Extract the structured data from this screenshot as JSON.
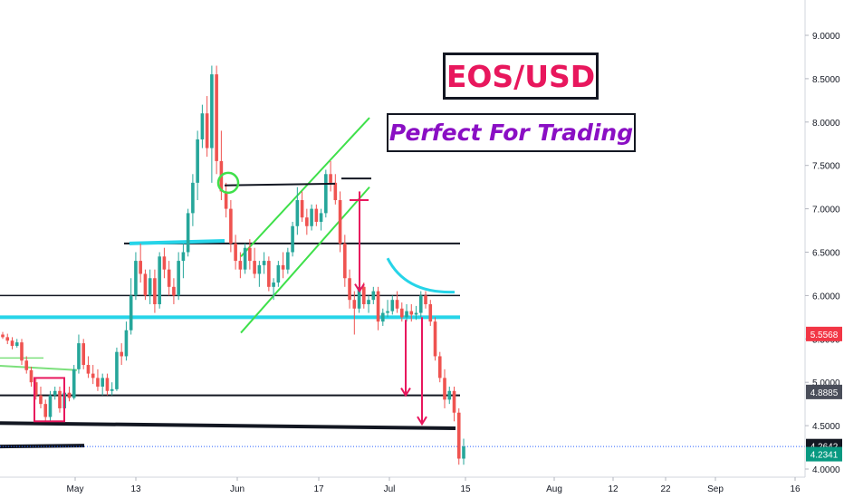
{
  "chart_data": {
    "type": "candlestick",
    "title": "EOS/USD",
    "subtitle": "Perfect For Trading",
    "y_ticks": [
      "9.0000",
      "8.5000",
      "8.0000",
      "7.5000",
      "7.0000",
      "6.5000",
      "6.0000",
      "5.5000",
      "5.0000",
      "4.5000",
      "4.0000"
    ],
    "ylim": [
      3.95,
      9.35
    ],
    "x_ticks": [
      "May",
      "13",
      "Jun",
      "17",
      "Jul",
      "15",
      "Aug",
      "12",
      "22",
      "Sep",
      "16"
    ],
    "price_labels": [
      {
        "value": "5.5568",
        "color": "#f23645"
      },
      {
        "value": "4.8885",
        "color": "#4a4e5a"
      },
      {
        "value": "4.2642",
        "color": "#131722"
      },
      {
        "value": "4.2341",
        "color": "#089981"
      }
    ],
    "colors": {
      "up": "#26a69a",
      "down": "#ef5350",
      "cyan": "#26d4e8",
      "green": "#3ee04a",
      "red": "#e8175d"
    },
    "candles": [
      [
        5.55,
        5.58,
        5.5,
        5.52
      ],
      [
        5.52,
        5.56,
        5.44,
        5.48
      ],
      [
        5.48,
        5.52,
        5.38,
        5.42
      ],
      [
        5.42,
        5.5,
        5.4,
        5.46
      ],
      [
        5.46,
        5.5,
        5.2,
        5.25
      ],
      [
        5.25,
        5.3,
        5.1,
        5.14
      ],
      [
        5.14,
        5.18,
        4.95,
        5.0
      ],
      [
        5.0,
        5.05,
        4.8,
        4.85
      ],
      [
        4.85,
        4.95,
        4.7,
        4.75
      ],
      [
        4.75,
        4.8,
        4.55,
        4.6
      ],
      [
        4.6,
        4.9,
        4.55,
        4.85
      ],
      [
        4.85,
        4.95,
        4.8,
        4.9
      ],
      [
        4.9,
        4.95,
        4.65,
        4.7
      ],
      [
        4.7,
        4.92,
        4.65,
        4.88
      ],
      [
        4.88,
        4.95,
        4.78,
        4.82
      ],
      [
        4.82,
        5.2,
        4.8,
        5.15
      ],
      [
        5.15,
        5.55,
        5.1,
        5.45
      ],
      [
        5.45,
        5.5,
        5.15,
        5.2
      ],
      [
        5.2,
        5.3,
        5.05,
        5.1
      ],
      [
        5.1,
        5.2,
        4.98,
        5.05
      ],
      [
        5.05,
        5.15,
        4.9,
        4.95
      ],
      [
        4.95,
        5.1,
        4.85,
        5.05
      ],
      [
        5.05,
        5.1,
        4.85,
        4.9
      ],
      [
        4.9,
        5.0,
        4.85,
        4.92
      ],
      [
        4.92,
        5.4,
        4.9,
        5.35
      ],
      [
        5.35,
        5.45,
        5.2,
        5.3
      ],
      [
        5.3,
        5.7,
        5.25,
        5.6
      ],
      [
        5.6,
        6.2,
        5.55,
        6.0
      ],
      [
        6.0,
        6.5,
        5.95,
        6.4
      ],
      [
        6.4,
        6.6,
        6.15,
        6.25
      ],
      [
        6.25,
        6.3,
        5.95,
        6.0
      ],
      [
        6.0,
        6.3,
        5.9,
        6.2
      ],
      [
        6.2,
        6.3,
        5.8,
        5.9
      ],
      [
        5.9,
        6.5,
        5.85,
        6.45
      ],
      [
        6.45,
        6.55,
        6.2,
        6.3
      ],
      [
        6.3,
        6.4,
        6.0,
        6.1
      ],
      [
        6.1,
        6.2,
        5.9,
        6.0
      ],
      [
        6.0,
        6.5,
        5.95,
        6.4
      ],
      [
        6.4,
        6.6,
        6.2,
        6.5
      ],
      [
        6.5,
        7.0,
        6.45,
        6.95
      ],
      [
        6.95,
        7.4,
        6.8,
        7.3
      ],
      [
        7.3,
        7.9,
        7.1,
        7.8
      ],
      [
        7.8,
        8.2,
        7.7,
        8.1
      ],
      [
        8.1,
        8.3,
        7.6,
        7.7
      ],
      [
        7.7,
        8.65,
        7.3,
        8.55
      ],
      [
        8.55,
        8.65,
        7.4,
        7.55
      ],
      [
        7.55,
        7.9,
        7.1,
        7.2
      ],
      [
        7.2,
        7.3,
        6.9,
        7.0
      ],
      [
        7.0,
        7.1,
        6.5,
        6.6
      ],
      [
        6.6,
        6.7,
        6.3,
        6.4
      ],
      [
        6.4,
        6.5,
        6.2,
        6.3
      ],
      [
        6.3,
        6.6,
        6.25,
        6.55
      ],
      [
        6.55,
        6.65,
        6.3,
        6.4
      ],
      [
        6.4,
        6.55,
        6.2,
        6.25
      ],
      [
        6.25,
        6.4,
        6.1,
        6.35
      ],
      [
        6.35,
        6.5,
        6.25,
        6.4
      ],
      [
        6.4,
        6.45,
        6.05,
        6.1
      ],
      [
        6.1,
        6.2,
        5.95,
        6.15
      ],
      [
        6.15,
        6.4,
        6.1,
        6.35
      ],
      [
        6.35,
        6.5,
        6.2,
        6.3
      ],
      [
        6.3,
        6.55,
        6.25,
        6.5
      ],
      [
        6.5,
        6.85,
        6.45,
        6.8
      ],
      [
        6.8,
        7.25,
        6.7,
        7.1
      ],
      [
        7.1,
        7.2,
        6.85,
        6.9
      ],
      [
        6.9,
        7.0,
        6.7,
        6.8
      ],
      [
        6.8,
        7.05,
        6.75,
        7.0
      ],
      [
        7.0,
        7.05,
        6.8,
        6.85
      ],
      [
        6.85,
        7.0,
        6.75,
        6.95
      ],
      [
        6.95,
        7.45,
        6.9,
        7.4
      ],
      [
        7.4,
        7.55,
        7.2,
        7.3
      ],
      [
        7.3,
        7.4,
        7.05,
        7.1
      ],
      [
        7.1,
        7.2,
        6.5,
        6.6
      ],
      [
        6.6,
        6.7,
        6.1,
        6.2
      ],
      [
        6.2,
        6.3,
        5.85,
        5.95
      ],
      [
        5.95,
        6.05,
        5.55,
        5.85
      ],
      [
        5.85,
        6.15,
        5.8,
        6.1
      ],
      [
        6.1,
        6.15,
        5.85,
        5.9
      ],
      [
        5.9,
        6.0,
        5.8,
        5.95
      ],
      [
        5.95,
        6.1,
        5.9,
        6.05
      ],
      [
        6.05,
        6.1,
        5.6,
        5.7
      ],
      [
        5.7,
        5.85,
        5.65,
        5.8
      ],
      [
        5.8,
        5.95,
        5.75,
        5.82
      ],
      [
        5.82,
        6.0,
        5.78,
        5.95
      ],
      [
        5.95,
        6.05,
        5.8,
        5.85
      ],
      [
        5.85,
        5.92,
        5.7,
        5.75
      ],
      [
        5.75,
        5.9,
        5.7,
        5.82
      ],
      [
        5.82,
        5.9,
        5.7,
        5.78
      ],
      [
        5.78,
        5.88,
        5.72,
        5.8
      ],
      [
        5.8,
        6.05,
        5.75,
        6.0
      ],
      [
        6.0,
        6.05,
        5.85,
        5.9
      ],
      [
        5.9,
        5.95,
        5.65,
        5.7
      ],
      [
        5.7,
        5.75,
        5.25,
        5.3
      ],
      [
        5.3,
        5.35,
        5.0,
        5.05
      ],
      [
        5.05,
        5.15,
        4.7,
        4.8
      ],
      [
        4.8,
        4.95,
        4.75,
        4.9
      ],
      [
        4.9,
        4.95,
        4.55,
        4.65
      ],
      [
        4.65,
        4.7,
        4.05,
        4.12
      ],
      [
        4.12,
        4.35,
        4.05,
        4.26
      ]
    ]
  }
}
